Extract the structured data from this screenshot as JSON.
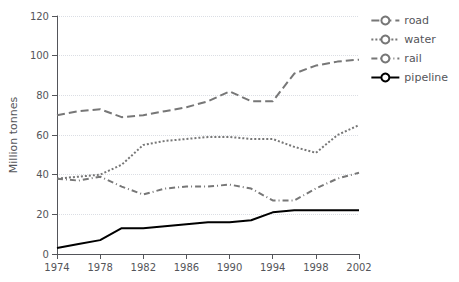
{
  "chart_data": {
    "type": "line",
    "x": [
      1974,
      1976,
      1978,
      1980,
      1982,
      1984,
      1986,
      1988,
      1990,
      1992,
      1994,
      1996,
      1998,
      2000,
      2002
    ],
    "series": [
      {
        "name": "road",
        "color": "#777777",
        "line_style": "dashed",
        "values": [
          70,
          72,
          73,
          69,
          70,
          72,
          74,
          77,
          82,
          77,
          77,
          91,
          95,
          97,
          98
        ]
      },
      {
        "name": "water",
        "color": "#777777",
        "line_style": "dotted",
        "values": [
          38,
          39,
          40,
          45,
          55,
          57,
          58,
          59,
          59,
          58,
          58,
          54,
          51,
          60,
          65
        ]
      },
      {
        "name": "rail",
        "color": "#777777",
        "line_style": "dashdot",
        "values": [
          38,
          37,
          39,
          34,
          30,
          33,
          34,
          34,
          35,
          33,
          27,
          27,
          33,
          38,
          41
        ]
      },
      {
        "name": "pipeline",
        "color": "#000000",
        "line_style": "solid",
        "values": [
          3,
          5,
          7,
          13,
          13,
          14,
          15,
          16,
          16,
          17,
          21,
          22,
          22,
          22,
          22
        ]
      }
    ],
    "ylabel": "Million tonnes",
    "xlim": [
      1974,
      2002
    ],
    "xticks": [
      1974,
      1978,
      1982,
      1986,
      1990,
      1994,
      1998,
      2002
    ],
    "ylim": [
      0,
      120
    ],
    "yticks": [
      0,
      20,
      40,
      60,
      80,
      100,
      120
    ],
    "grid": true,
    "legend": "right"
  }
}
